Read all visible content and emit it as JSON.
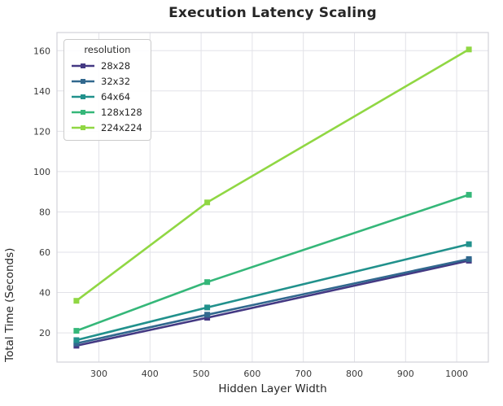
{
  "chart_data": {
    "type": "line",
    "title": "Execution Latency Scaling",
    "xlabel": "Hidden Layer Width",
    "ylabel": "Total Time (Seconds)",
    "x": [
      256,
      512,
      1024
    ],
    "series": [
      {
        "name": "28x28",
        "color": "#443983",
        "values": [
          13.6,
          27.5,
          55.8
        ]
      },
      {
        "name": "32x32",
        "color": "#31688e",
        "values": [
          14.8,
          29.0,
          56.6
        ]
      },
      {
        "name": "64x64",
        "color": "#21918c",
        "values": [
          16.4,
          32.6,
          64.0
        ]
      },
      {
        "name": "128x128",
        "color": "#35b779",
        "values": [
          21.0,
          45.2,
          88.5
        ]
      },
      {
        "name": "224x224",
        "color": "#90d743",
        "values": [
          35.9,
          84.7,
          160.6
        ]
      }
    ],
    "legend": {
      "title": "resolution",
      "position": "upper-left"
    },
    "xticks": [
      300,
      400,
      500,
      600,
      700,
      800,
      900,
      1000
    ],
    "yticks": [
      20,
      40,
      60,
      80,
      100,
      120,
      140,
      160
    ],
    "xlim": [
      218,
      1062
    ],
    "ylim": [
      5.5,
      169
    ],
    "grid": true,
    "line_style": "solid",
    "marker": "square"
  }
}
